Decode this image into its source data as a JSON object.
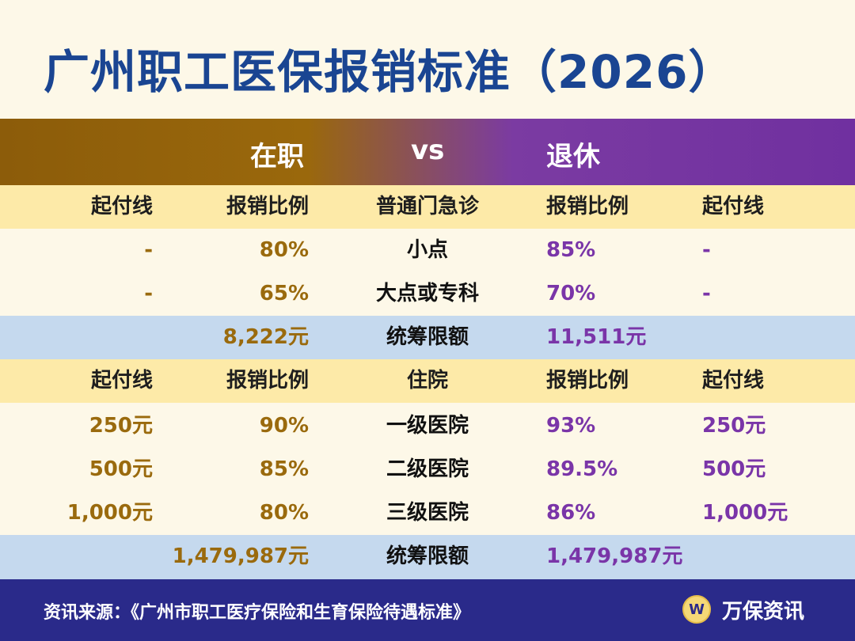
{
  "title": "广州职工医保报销标准（2026）",
  "band": {
    "left": "在职",
    "vs": "vs",
    "right": "退休"
  },
  "outpatient": {
    "header": [
      "起付线",
      "报销比例",
      "普通门急诊",
      "报销比例",
      "起付线"
    ],
    "rows": [
      [
        "-",
        "80%",
        "小点",
        "85%",
        "-"
      ],
      [
        "-",
        "65%",
        "大点或专科",
        "70%",
        "-"
      ]
    ],
    "quota": [
      "",
      "8,222元",
      "统筹限额",
      "11,511元",
      ""
    ]
  },
  "inpatient": {
    "header": [
      "起付线",
      "报销比例",
      "住院",
      "报销比例",
      "起付线"
    ],
    "rows": [
      [
        "250元",
        "90%",
        "一级医院",
        "93%",
        "250元"
      ],
      [
        "500元",
        "85%",
        "二级医院",
        "89.5%",
        "500元"
      ],
      [
        "1,000元",
        "80%",
        "三级医院",
        "86%",
        "1,000元"
      ]
    ],
    "quota": [
      "",
      "1,479,987元",
      "统筹限额",
      "1,479,987元",
      ""
    ]
  },
  "footer": {
    "source": "资讯来源：《广州市职工医疗保险和生育保险待遇标准》",
    "logo_letter": "W",
    "brand": "万保资讯"
  },
  "colors": {
    "title": "#1a4592",
    "employed": "#9a6a0d",
    "retired": "#7a35a8",
    "header_row": "#fdeaa8",
    "quota_row": "#c5d9ee",
    "footer": "#2a2a8a"
  }
}
